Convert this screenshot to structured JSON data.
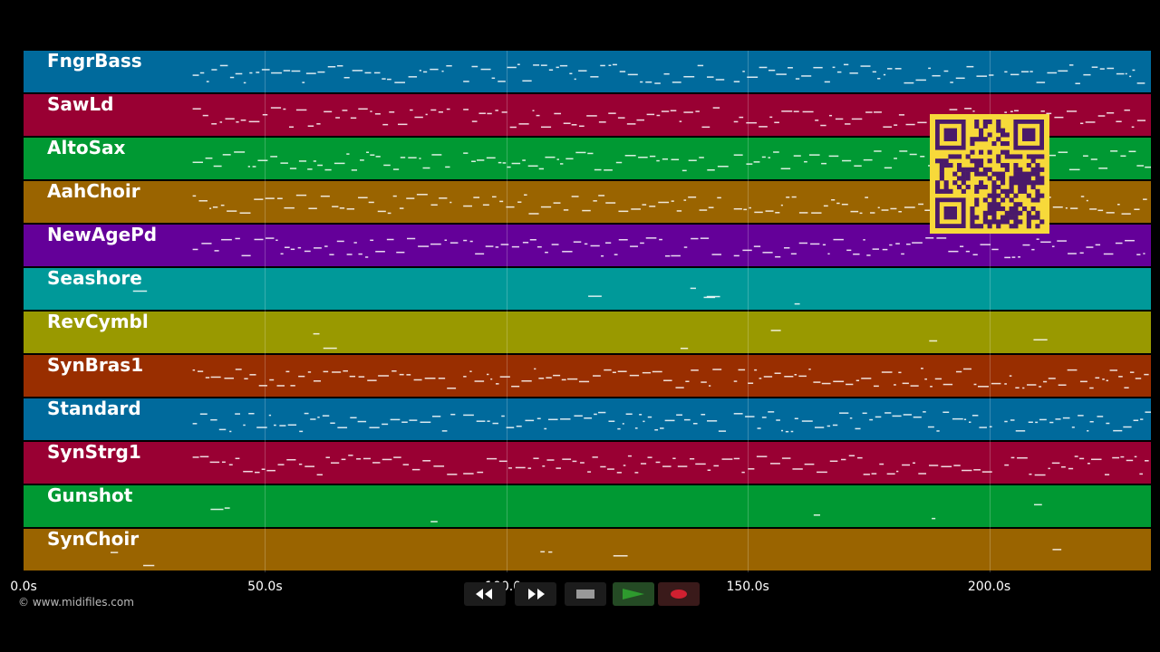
{
  "tracks": [
    {
      "name": "FngrBass",
      "color": "#006a9c"
    },
    {
      "name": "SawLd",
      "color": "#990033"
    },
    {
      "name": "AltoSax",
      "color": "#009933"
    },
    {
      "name": "AahChoir",
      "color": "#9a6400"
    },
    {
      "name": "NewAgePd",
      "color": "#640099"
    },
    {
      "name": "Seashore",
      "color": "#009999"
    },
    {
      "name": "RevCymbl",
      "color": "#999900"
    },
    {
      "name": "SynBras1",
      "color": "#992e00"
    },
    {
      "name": "Standard",
      "color": "#006a9c"
    },
    {
      "name": "SynStrg1",
      "color": "#990033"
    },
    {
      "name": "Gunshot",
      "color": "#009933"
    },
    {
      "name": "SynChoir",
      "color": "#9a6400"
    }
  ],
  "timeline": {
    "ticks": [
      "0.0s",
      "50.0s",
      "100.0s",
      "150.0s",
      "200.0s"
    ],
    "tick_values": [
      0,
      50,
      100,
      150,
      200
    ],
    "duration_seconds": 233.5
  },
  "copyright": "© www.midifiles.com",
  "transport": {
    "rewind_icon": "rewind-icon",
    "fast_forward_icon": "fast-forward-icon",
    "stop_icon": "stop-icon",
    "play_icon": "play-icon",
    "record_icon": "record-icon",
    "play_color": "#2e9a2e",
    "record_color": "#d02030"
  },
  "qr_code": {
    "foreground": "#4a1a6a",
    "background": "#f7d93a"
  }
}
